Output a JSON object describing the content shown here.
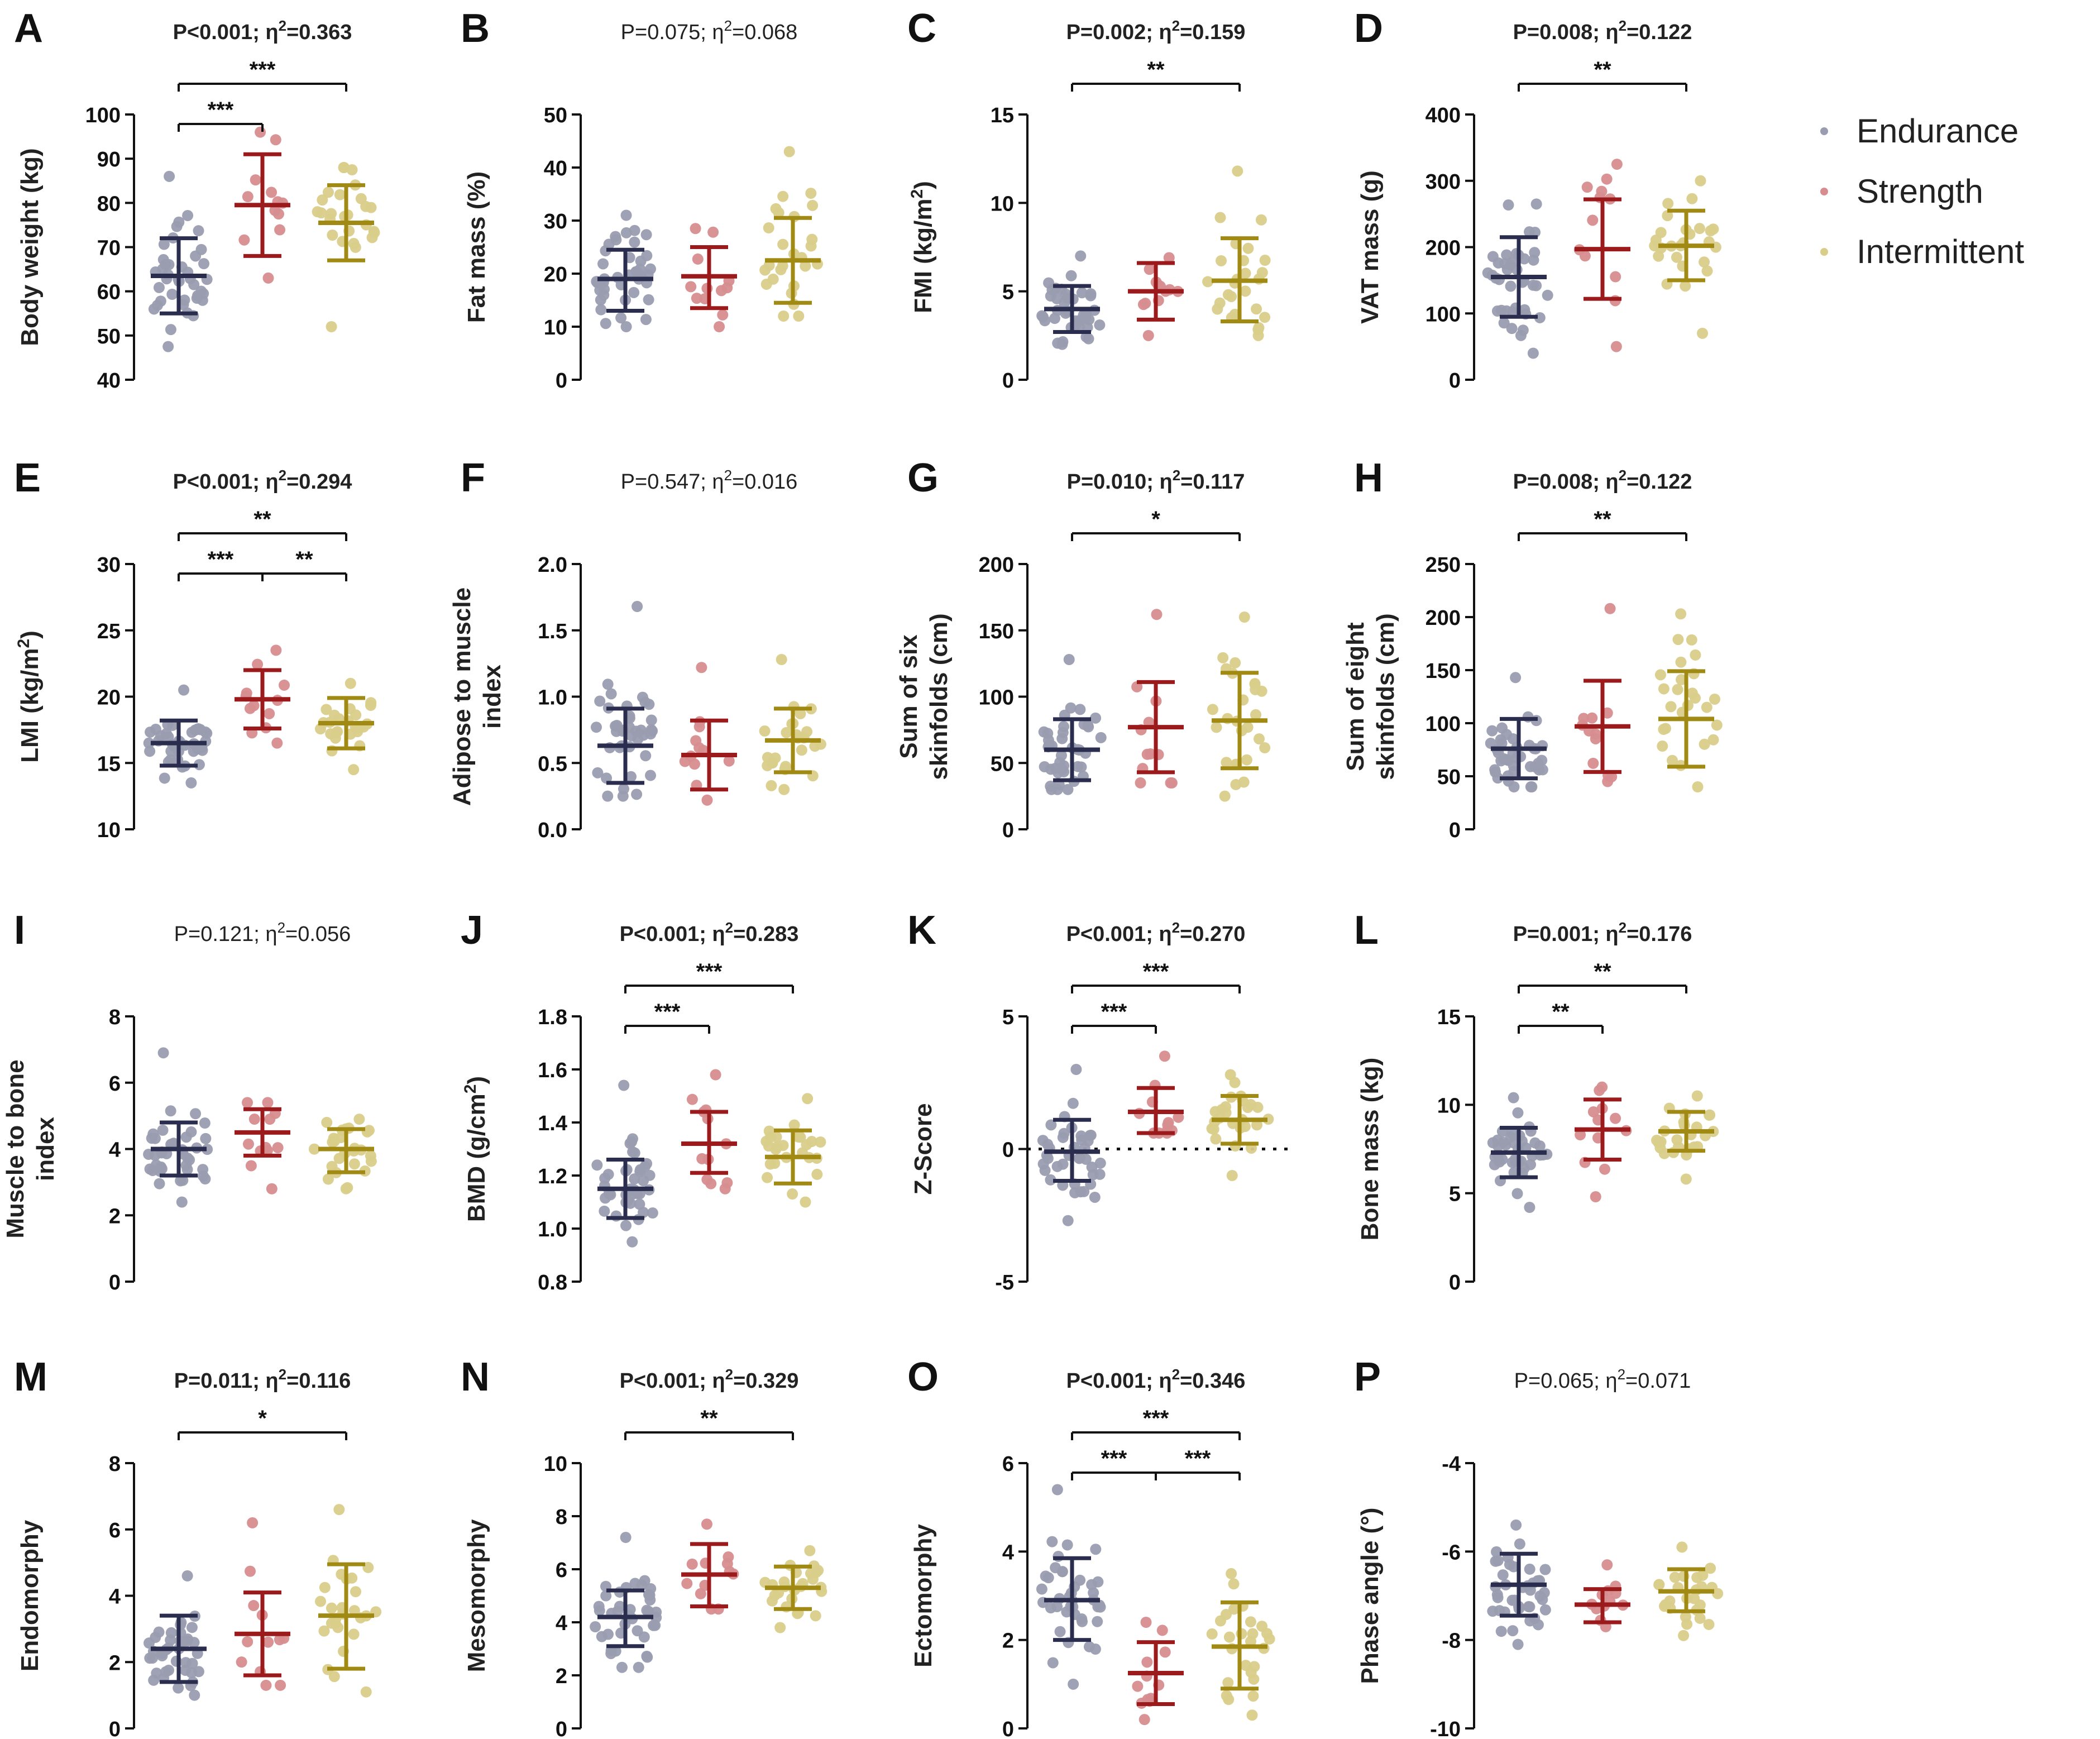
{
  "colors": {
    "endurance": "#2b2d4f",
    "strength": "#9b1b1d",
    "intermittent": "#a08a14"
  },
  "legend": [
    {
      "label": "Endurance",
      "color_key": "endurance"
    },
    {
      "label": "Strength",
      "color_key": "strength"
    },
    {
      "label": "Intermittent",
      "color_key": "intermittent"
    }
  ],
  "chart_data": [
    {
      "type": "scatter",
      "panel": "A",
      "title": "P<0.001; η²=0.363",
      "title_bold": true,
      "ylabel": "Body weight  (kg)",
      "ylim": [
        40,
        100
      ],
      "yticks": [
        40,
        50,
        60,
        70,
        80,
        90,
        100
      ],
      "groups": [
        {
          "name": "Endurance",
          "mean": 63.5,
          "sd_low": 55,
          "sd_high": 72,
          "min": 47.5,
          "max": 86
        },
        {
          "name": "Strength",
          "mean": 79.5,
          "sd_low": 68,
          "sd_high": 91,
          "min": 63,
          "max": 96
        },
        {
          "name": "Intermittent",
          "mean": 75.5,
          "sd_low": 67,
          "sd_high": 84,
          "min": 52,
          "max": 88
        }
      ],
      "brackets": [
        {
          "from": 0,
          "to": 1,
          "level": 0,
          "label": "***"
        },
        {
          "from": 0,
          "to": 2,
          "level": 1,
          "label": "***"
        }
      ]
    },
    {
      "type": "scatter",
      "panel": "B",
      "title": "P=0.075; η²=0.068",
      "title_bold": false,
      "ylabel": "Fat mass  (%)",
      "ylim": [
        0,
        50
      ],
      "yticks": [
        0,
        10,
        20,
        30,
        40,
        50
      ],
      "groups": [
        {
          "name": "Endurance",
          "mean": 19,
          "sd_low": 13,
          "sd_high": 24.5,
          "min": 10,
          "max": 31
        },
        {
          "name": "Strength",
          "mean": 19.5,
          "sd_low": 13.5,
          "sd_high": 25,
          "min": 10,
          "max": 28.5
        },
        {
          "name": "Intermittent",
          "mean": 22.5,
          "sd_low": 14.5,
          "sd_high": 30.5,
          "min": 12,
          "max": 43
        }
      ],
      "brackets": []
    },
    {
      "type": "scatter",
      "panel": "C",
      "title": "P=0.002; η²=0.159",
      "title_bold": true,
      "ylabel": "FMI (kg/m²)",
      "ylim": [
        0,
        15
      ],
      "yticks": [
        0,
        5,
        10,
        15
      ],
      "groups": [
        {
          "name": "Endurance",
          "mean": 4,
          "sd_low": 2.7,
          "sd_high": 5.3,
          "min": 2,
          "max": 7
        },
        {
          "name": "Strength",
          "mean": 5,
          "sd_low": 3.4,
          "sd_high": 6.6,
          "min": 2.5,
          "max": 6.9
        },
        {
          "name": "Intermittent",
          "mean": 5.6,
          "sd_low": 3.3,
          "sd_high": 8,
          "min": 2.5,
          "max": 11.8
        }
      ],
      "brackets": [
        {
          "from": 0,
          "to": 2,
          "level": 1,
          "label": "**"
        }
      ]
    },
    {
      "type": "scatter",
      "panel": "D",
      "title": "P=0.008; η²=0.122",
      "title_bold": true,
      "ylabel": "VAT mass  (g)",
      "ylim": [
        0,
        400
      ],
      "yticks": [
        0,
        100,
        200,
        300,
        400
      ],
      "groups": [
        {
          "name": "Endurance",
          "mean": 155,
          "sd_low": 95,
          "sd_high": 215,
          "min": 40,
          "max": 265
        },
        {
          "name": "Strength",
          "mean": 197,
          "sd_low": 122,
          "sd_high": 272,
          "min": 50,
          "max": 325
        },
        {
          "name": "Intermittent",
          "mean": 202,
          "sd_low": 150,
          "sd_high": 255,
          "min": 70,
          "max": 300
        }
      ],
      "brackets": [
        {
          "from": 0,
          "to": 2,
          "level": 1,
          "label": "**"
        }
      ]
    },
    {
      "type": "scatter",
      "panel": "E",
      "title": "P<0.001; η²=0.294",
      "title_bold": true,
      "ylabel": "LMI (kg/m²)",
      "ylim": [
        10,
        30
      ],
      "yticks": [
        10,
        15,
        20,
        25,
        30
      ],
      "groups": [
        {
          "name": "Endurance",
          "mean": 16.5,
          "sd_low": 14.8,
          "sd_high": 18.2,
          "min": 13.5,
          "max": 20.5
        },
        {
          "name": "Strength",
          "mean": 19.8,
          "sd_low": 17.6,
          "sd_high": 22,
          "min": 16.5,
          "max": 23.5
        },
        {
          "name": "Intermittent",
          "mean": 18,
          "sd_low": 16.1,
          "sd_high": 19.9,
          "min": 14.5,
          "max": 21
        }
      ],
      "brackets": [
        {
          "from": 0,
          "to": 1,
          "level": 0,
          "label": "***"
        },
        {
          "from": 1,
          "to": 2,
          "level": 0,
          "label": "**"
        },
        {
          "from": 0,
          "to": 2,
          "level": 1,
          "label": "**"
        }
      ]
    },
    {
      "type": "scatter",
      "panel": "F",
      "title": "P=0.547; η²=0.016",
      "title_bold": false,
      "ylabel": "Adipose to muscle index",
      "ylim": [
        0,
        2
      ],
      "yticks": [
        0.0,
        0.5,
        1.0,
        1.5,
        2.0
      ],
      "groups": [
        {
          "name": "Endurance",
          "mean": 0.63,
          "sd_low": 0.35,
          "sd_high": 0.91,
          "min": 0.25,
          "max": 1.68
        },
        {
          "name": "Strength",
          "mean": 0.56,
          "sd_low": 0.3,
          "sd_high": 0.82,
          "min": 0.22,
          "max": 1.22
        },
        {
          "name": "Intermittent",
          "mean": 0.67,
          "sd_low": 0.43,
          "sd_high": 0.91,
          "min": 0.3,
          "max": 1.28
        }
      ],
      "brackets": []
    },
    {
      "type": "scatter",
      "panel": "G",
      "title": "P=0.010; η²=0.117",
      "title_bold": true,
      "ylabel": "Sum of six skinfolds (cm)",
      "ylim": [
        0,
        200
      ],
      "yticks": [
        0,
        50,
        100,
        150,
        200
      ],
      "groups": [
        {
          "name": "Endurance",
          "mean": 60,
          "sd_low": 37,
          "sd_high": 83,
          "min": 30,
          "max": 128
        },
        {
          "name": "Strength",
          "mean": 77,
          "sd_low": 43,
          "sd_high": 111,
          "min": 35,
          "max": 162
        },
        {
          "name": "Intermittent",
          "mean": 82,
          "sd_low": 46,
          "sd_high": 118,
          "min": 25,
          "max": 160
        }
      ],
      "brackets": [
        {
          "from": 0,
          "to": 2,
          "level": 1,
          "label": "*"
        }
      ]
    },
    {
      "type": "scatter",
      "panel": "H",
      "title": "P=0.008; η²=0.122",
      "title_bold": true,
      "ylabel": "Sum of eight skinfolds (cm)",
      "ylim": [
        0,
        250
      ],
      "yticks": [
        0,
        50,
        100,
        150,
        200,
        250
      ],
      "groups": [
        {
          "name": "Endurance",
          "mean": 76,
          "sd_low": 48,
          "sd_high": 104,
          "min": 40,
          "max": 143
        },
        {
          "name": "Strength",
          "mean": 97,
          "sd_low": 54,
          "sd_high": 140,
          "min": 45,
          "max": 208
        },
        {
          "name": "Intermittent",
          "mean": 104,
          "sd_low": 59,
          "sd_high": 149,
          "min": 40,
          "max": 203
        }
      ],
      "brackets": [
        {
          "from": 0,
          "to": 2,
          "level": 1,
          "label": "**"
        }
      ]
    },
    {
      "type": "scatter",
      "panel": "I",
      "title": "P=0.121; η²=0.056",
      "title_bold": false,
      "ylabel": "Muscle to bone index",
      "ylim": [
        0,
        8
      ],
      "yticks": [
        0,
        2,
        4,
        6,
        8
      ],
      "groups": [
        {
          "name": "Endurance",
          "mean": 4.0,
          "sd_low": 3.2,
          "sd_high": 4.8,
          "min": 2.4,
          "max": 6.9
        },
        {
          "name": "Strength",
          "mean": 4.5,
          "sd_low": 3.8,
          "sd_high": 5.2,
          "min": 2.8,
          "max": 5.4
        },
        {
          "name": "Intermittent",
          "mean": 4.0,
          "sd_low": 3.3,
          "sd_high": 4.6,
          "min": 2.8,
          "max": 4.9
        }
      ],
      "brackets": []
    },
    {
      "type": "scatter",
      "panel": "J",
      "title": "P<0.001; η²=0.283",
      "title_bold": true,
      "ylabel": "BMD (g/cm²)",
      "ylim": [
        0.8,
        1.8
      ],
      "yticks": [
        0.8,
        1.0,
        1.2,
        1.4,
        1.6,
        1.8
      ],
      "groups": [
        {
          "name": "Endurance",
          "mean": 1.15,
          "sd_low": 1.04,
          "sd_high": 1.26,
          "min": 0.95,
          "max": 1.54
        },
        {
          "name": "Strength",
          "mean": 1.32,
          "sd_low": 1.21,
          "sd_high": 1.44,
          "min": 1.15,
          "max": 1.58
        },
        {
          "name": "Intermittent",
          "mean": 1.27,
          "sd_low": 1.17,
          "sd_high": 1.37,
          "min": 1.1,
          "max": 1.49
        }
      ],
      "brackets": [
        {
          "from": 0,
          "to": 1,
          "level": 0,
          "label": "***"
        },
        {
          "from": 0,
          "to": 2,
          "level": 1,
          "label": "***"
        }
      ]
    },
    {
      "type": "scatter",
      "panel": "K",
      "title": "P<0.001; η²=0.270",
      "title_bold": true,
      "ylabel": "Z-Score",
      "ylim": [
        -5,
        5
      ],
      "yticks": [
        -5,
        0,
        5
      ],
      "zero_line": true,
      "groups": [
        {
          "name": "Endurance",
          "mean": -0.1,
          "sd_low": -1.2,
          "sd_high": 1.1,
          "min": -2.7,
          "max": 3.0
        },
        {
          "name": "Strength",
          "mean": 1.4,
          "sd_low": 0.6,
          "sd_high": 2.3,
          "min": 0.6,
          "max": 3.5
        },
        {
          "name": "Intermittent",
          "mean": 1.1,
          "sd_low": 0.2,
          "sd_high": 2.0,
          "min": -1.0,
          "max": 2.8
        }
      ],
      "brackets": [
        {
          "from": 0,
          "to": 1,
          "level": 0,
          "label": "***"
        },
        {
          "from": 0,
          "to": 2,
          "level": 1,
          "label": "***"
        }
      ]
    },
    {
      "type": "scatter",
      "panel": "L",
      "title": "P=0.001; η²=0.176",
      "title_bold": true,
      "ylabel": "Bone mass (kg)",
      "ylim": [
        0,
        15
      ],
      "yticks": [
        0,
        5,
        10,
        15
      ],
      "groups": [
        {
          "name": "Endurance",
          "mean": 7.3,
          "sd_low": 5.9,
          "sd_high": 8.7,
          "min": 4.2,
          "max": 10.4
        },
        {
          "name": "Strength",
          "mean": 8.6,
          "sd_low": 6.9,
          "sd_high": 10.3,
          "min": 4.8,
          "max": 11.0
        },
        {
          "name": "Intermittent",
          "mean": 8.5,
          "sd_low": 7.4,
          "sd_high": 9.6,
          "min": 5.8,
          "max": 10.5
        }
      ],
      "brackets": [
        {
          "from": 0,
          "to": 1,
          "level": 0,
          "label": "**"
        },
        {
          "from": 0,
          "to": 2,
          "level": 1,
          "label": "**"
        }
      ]
    },
    {
      "type": "scatter",
      "panel": "M",
      "title": "P=0.011; η²=0.116",
      "title_bold": true,
      "ylabel": "Endomorphy",
      "ylim": [
        0,
        8
      ],
      "yticks": [
        0,
        2,
        4,
        6,
        8
      ],
      "groups": [
        {
          "name": "Endurance",
          "mean": 2.4,
          "sd_low": 1.4,
          "sd_high": 3.4,
          "min": 1.0,
          "max": 4.6
        },
        {
          "name": "Strength",
          "mean": 2.85,
          "sd_low": 1.6,
          "sd_high": 4.1,
          "min": 1.3,
          "max": 6.2
        },
        {
          "name": "Intermittent",
          "mean": 3.4,
          "sd_low": 1.8,
          "sd_high": 4.95,
          "min": 1.1,
          "max": 6.6
        }
      ],
      "brackets": [
        {
          "from": 0,
          "to": 2,
          "level": 1,
          "label": "*"
        }
      ]
    },
    {
      "type": "scatter",
      "panel": "N",
      "title": "P<0.001; η²=0.329",
      "title_bold": true,
      "ylabel": "Mesomorphy",
      "ylim": [
        0,
        10
      ],
      "yticks": [
        0,
        2,
        4,
        6,
        8,
        10
      ],
      "groups": [
        {
          "name": "Endurance",
          "mean": 4.2,
          "sd_low": 3.1,
          "sd_high": 5.2,
          "min": 2.3,
          "max": 7.2
        },
        {
          "name": "Strength",
          "mean": 5.8,
          "sd_low": 4.6,
          "sd_high": 6.95,
          "min": 4.5,
          "max": 7.7
        },
        {
          "name": "Intermittent",
          "mean": 5.3,
          "sd_low": 4.5,
          "sd_high": 6.1,
          "min": 3.8,
          "max": 6.7
        }
      ],
      "brackets": [
        {
          "from": 0,
          "to": 2,
          "level": 1,
          "label": "**"
        }
      ]
    },
    {
      "type": "scatter",
      "panel": "O",
      "title": "P<0.001; η²=0.346",
      "title_bold": true,
      "ylabel": "Ectomorphy",
      "ylim": [
        0,
        6
      ],
      "yticks": [
        0,
        2,
        4,
        6
      ],
      "groups": [
        {
          "name": "Endurance",
          "mean": 2.9,
          "sd_low": 2.0,
          "sd_high": 3.85,
          "min": 1.0,
          "max": 5.4
        },
        {
          "name": "Strength",
          "mean": 1.25,
          "sd_low": 0.55,
          "sd_high": 1.95,
          "min": 0.2,
          "max": 2.4
        },
        {
          "name": "Intermittent",
          "mean": 1.85,
          "sd_low": 0.9,
          "sd_high": 2.85,
          "min": 0.3,
          "max": 3.5
        }
      ],
      "brackets": [
        {
          "from": 0,
          "to": 1,
          "level": 0,
          "label": "***"
        },
        {
          "from": 1,
          "to": 2,
          "level": 0,
          "label": "***"
        },
        {
          "from": 0,
          "to": 2,
          "level": 1,
          "label": "***"
        }
      ]
    },
    {
      "type": "scatter",
      "panel": "P",
      "title": "P=0.065; η²=0.071",
      "title_bold": false,
      "ylabel": "Phase angle (°)",
      "ylim": [
        -10,
        -4
      ],
      "yticks": [
        -10,
        -8,
        -6,
        -4
      ],
      "groups": [
        {
          "name": "Endurance",
          "mean": -6.75,
          "sd_low": -7.45,
          "sd_high": -6.05,
          "min": -8.1,
          "max": -5.4
        },
        {
          "name": "Strength",
          "mean": -7.2,
          "sd_low": -7.6,
          "sd_high": -6.85,
          "min": -7.7,
          "max": -6.3
        },
        {
          "name": "Intermittent",
          "mean": -6.9,
          "sd_low": -7.35,
          "sd_high": -6.4,
          "min": -7.9,
          "max": -5.9
        }
      ],
      "brackets": []
    }
  ]
}
